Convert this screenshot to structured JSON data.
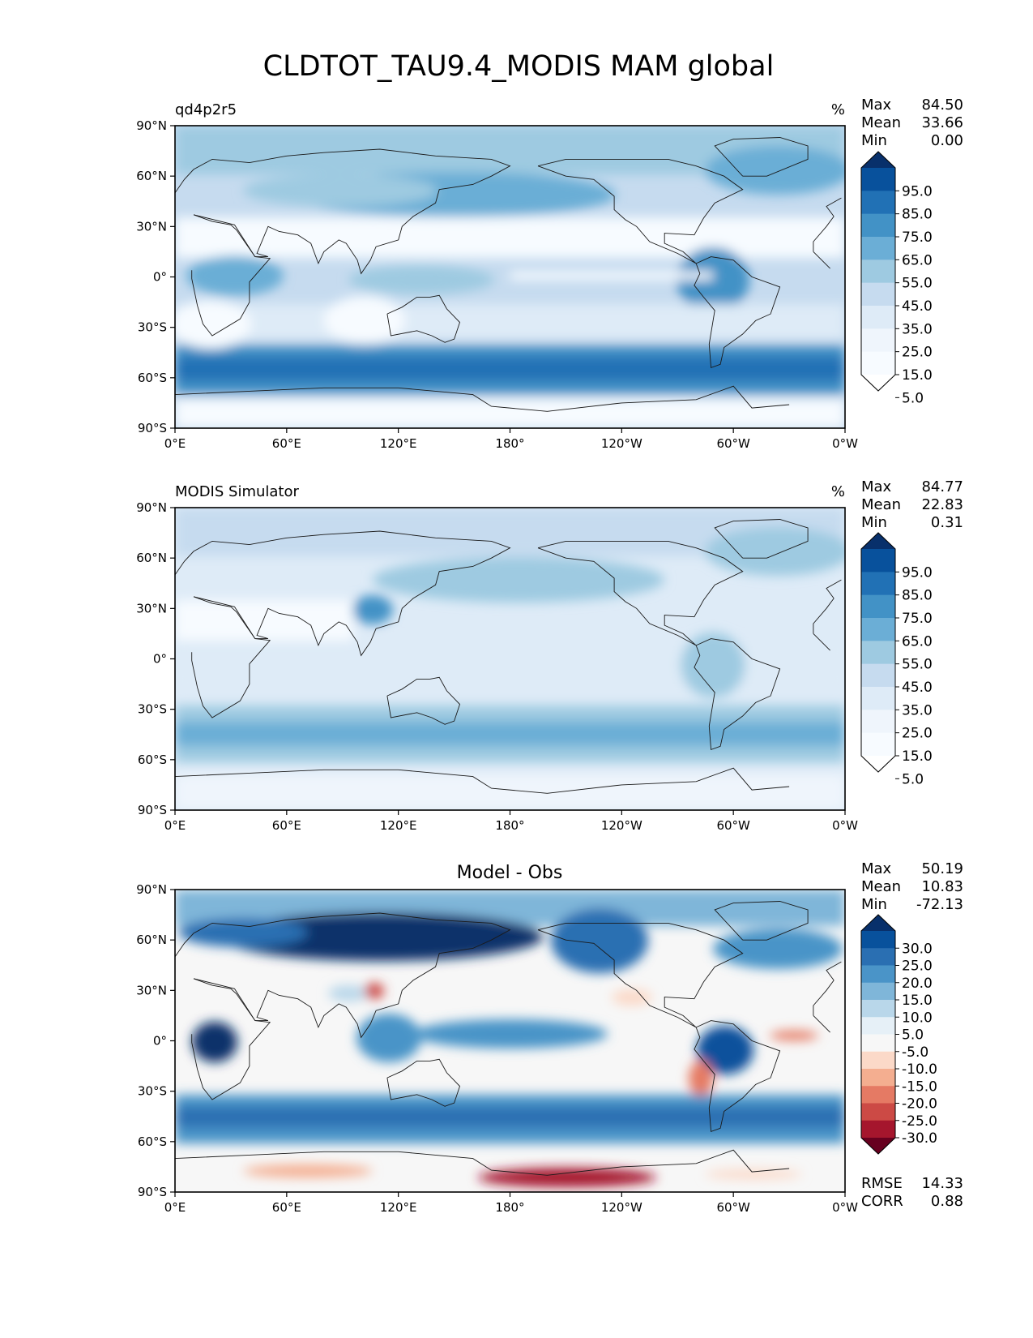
{
  "title": "CLDTOT_TAU9.4_MODIS MAM global",
  "x_ticks": [
    "0°E",
    "60°E",
    "120°E",
    "180°",
    "120°W",
    "60°W",
    "0°W"
  ],
  "y_ticks": [
    "90°N",
    "60°N",
    "30°N",
    "0°",
    "30°S",
    "60°S",
    "90°S"
  ],
  "chart_data": [
    {
      "type": "heatmap",
      "panel_label": "qd4p2r5",
      "units": "%",
      "stats": [
        {
          "label": "Max",
          "value": "84.50"
        },
        {
          "label": "Mean",
          "value": "33.66"
        },
        {
          "label": "Min",
          "value": "0.00"
        }
      ],
      "colorbar": {
        "levels": [
          "95.0",
          "85.0",
          "75.0",
          "65.0",
          "55.0",
          "45.0",
          "35.0",
          "25.0",
          "15.0",
          "5.0"
        ],
        "colors": [
          "#08306b",
          "#08519c",
          "#2171b5",
          "#4292c6",
          "#6baed6",
          "#9ecae1",
          "#c6dbef",
          "#deebf7",
          "#eff5fc",
          "#f7fbff",
          "#ffffff"
        ]
      },
      "xlim": [
        0,
        360
      ],
      "ylim": [
        -90,
        90
      ]
    },
    {
      "type": "heatmap",
      "panel_label": "MODIS Simulator",
      "units": "%",
      "stats": [
        {
          "label": "Max",
          "value": "84.77"
        },
        {
          "label": "Mean",
          "value": "22.83"
        },
        {
          "label": "Min",
          "value": "0.31"
        }
      ],
      "colorbar": {
        "levels": [
          "95.0",
          "85.0",
          "75.0",
          "65.0",
          "55.0",
          "45.0",
          "35.0",
          "25.0",
          "15.0",
          "5.0"
        ],
        "colors": [
          "#08306b",
          "#08519c",
          "#2171b5",
          "#4292c6",
          "#6baed6",
          "#9ecae1",
          "#c6dbef",
          "#deebf7",
          "#eff5fc",
          "#f7fbff",
          "#ffffff"
        ]
      },
      "xlim": [
        0,
        360
      ],
      "ylim": [
        -90,
        90
      ]
    },
    {
      "type": "heatmap",
      "panel_title": "Model - Obs",
      "stats": [
        {
          "label": "Max",
          "value": "50.19"
        },
        {
          "label": "Mean",
          "value": "10.83"
        },
        {
          "label": "Min",
          "value": "-72.13"
        }
      ],
      "metrics": [
        {
          "label": "RMSE",
          "value": "14.33"
        },
        {
          "label": "CORR",
          "value": "0.88"
        }
      ],
      "colorbar": {
        "levels": [
          "30.0",
          "25.0",
          "20.0",
          "15.0",
          "10.0",
          "5.0",
          "-5.0",
          "-10.0",
          "-15.0",
          "-20.0",
          "-25.0",
          "-30.0"
        ],
        "colors": [
          "#08306b",
          "#08519c",
          "#2a6fb2",
          "#4a94c8",
          "#7fb6d9",
          "#b9d7ea",
          "#e6f0f7",
          "#f7f7f7",
          "#fbd9c8",
          "#f4ae90",
          "#e57a64",
          "#cc4a45",
          "#a5162d",
          "#67001f"
        ]
      },
      "xlim": [
        0,
        360
      ],
      "ylim": [
        -90,
        90
      ]
    }
  ]
}
